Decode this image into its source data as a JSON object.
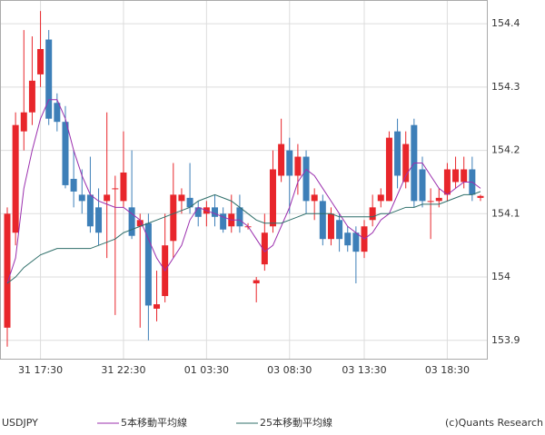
{
  "chart_data": {
    "type": "candlestick",
    "symbol": "USDJPY",
    "source": "(c)Quants Research",
    "up_color": "#e8262b",
    "down_color": "#3d7fb8",
    "categories": [
      null,
      null,
      null,
      null,
      "31 17:30",
      null,
      null,
      null,
      null,
      null,
      null,
      null,
      null,
      null,
      "31 22:30",
      null,
      null,
      null,
      null,
      null,
      null,
      null,
      null,
      null,
      "01 03:30",
      null,
      null,
      null,
      null,
      null,
      null,
      null,
      null,
      null,
      "03 08:30",
      null,
      null,
      null,
      null,
      null,
      null,
      null,
      null,
      "03 13:30",
      null,
      null,
      null,
      null,
      null,
      null,
      null,
      null,
      null,
      "03 18:30",
      null,
      null,
      null,
      null
    ],
    "open": [
      153.92,
      154.07,
      154.23,
      154.26,
      154.32,
      154.375,
      154.275,
      154.245,
      154.155,
      154.13,
      154.13,
      154.11,
      154.12,
      154.14,
      154.12,
      154.11,
      154.08,
      154.085,
      153.95,
      153.97,
      154.057,
      154.12,
      154.125,
      154.11,
      154.1,
      154.11,
      154.1,
      154.08,
      154.11,
      154.08,
      153.99,
      154.02,
      154.08,
      154.16,
      154.2,
      154.16,
      154.19,
      154.12,
      154.12,
      154.06,
      154.09,
      154.07,
      154.07,
      154.04,
      154.09,
      154.12,
      154.12,
      154.23,
      154.15,
      154.24,
      154.17,
      154.12,
      154.12,
      154.13,
      154.15,
      154.15,
      154.17,
      154.125
    ],
    "high": [
      154.11,
      154.26,
      154.39,
      154.38,
      154.42,
      154.39,
      154.29,
      154.27,
      154.2,
      154.17,
      154.19,
      154.14,
      154.26,
      154.16,
      154.23,
      154.2,
      154.1,
      154.1,
      154.01,
      154.1,
      154.18,
      154.14,
      154.18,
      154.12,
      154.12,
      154.13,
      154.11,
      154.13,
      154.13,
      154.085,
      154.0,
      154.1,
      154.2,
      154.25,
      154.22,
      154.21,
      154.2,
      154.14,
      154.13,
      154.11,
      154.1,
      154.08,
      154.08,
      154.09,
      154.13,
      154.14,
      154.23,
      154.25,
      154.23,
      154.25,
      154.19,
      154.14,
      154.14,
      154.18,
      154.19,
      154.19,
      154.19,
      154.13
    ],
    "low": [
      153.89,
      154.05,
      154.2,
      154.24,
      154.3,
      154.24,
      154.23,
      154.14,
      154.11,
      154.1,
      154.07,
      154.05,
      154.03,
      153.94,
      154.11,
      154.06,
      153.92,
      153.9,
      153.93,
      153.96,
      154.03,
      154.1,
      154.1,
      154.08,
      154.08,
      154.08,
      154.07,
      154.07,
      154.07,
      154.075,
      153.96,
      154.01,
      154.07,
      154.15,
      154.1,
      154.13,
      154.1,
      154.09,
      154.05,
      154.05,
      154.04,
      154.04,
      153.99,
      154.03,
      154.08,
      154.11,
      154.12,
      154.14,
      154.14,
      154.11,
      154.11,
      154.06,
      154.11,
      154.12,
      154.14,
      154.14,
      154.12,
      154.12
    ],
    "close": [
      154.1,
      154.24,
      154.26,
      154.31,
      154.36,
      154.25,
      154.245,
      154.145,
      154.135,
      154.12,
      154.08,
      154.07,
      154.13,
      154.14,
      154.165,
      154.065,
      154.09,
      153.955,
      153.957,
      154.05,
      154.13,
      154.13,
      154.11,
      154.095,
      154.11,
      154.095,
      154.075,
      154.1,
      154.08,
      154.08,
      153.995,
      154.07,
      154.17,
      154.21,
      154.16,
      154.19,
      154.12,
      154.13,
      154.06,
      154.1,
      154.06,
      154.05,
      154.04,
      154.08,
      154.11,
      154.13,
      154.22,
      154.16,
      154.21,
      154.12,
      154.12,
      154.12,
      154.125,
      154.17,
      154.17,
      154.17,
      154.13,
      154.128
    ],
    "series": [
      {
        "name": "5本移動平均線",
        "color": "#9b2fae",
        "values": [
          153.99,
          154.03,
          154.14,
          154.2,
          154.25,
          154.28,
          154.28,
          154.25,
          154.2,
          154.16,
          154.13,
          154.12,
          154.115,
          154.11,
          154.11,
          154.1,
          154.09,
          154.06,
          154.03,
          154.01,
          154.03,
          154.05,
          154.09,
          154.11,
          154.105,
          154.1,
          154.095,
          154.09,
          154.09,
          154.08,
          154.06,
          154.04,
          154.05,
          154.08,
          154.11,
          154.15,
          154.17,
          154.16,
          154.14,
          154.12,
          154.1,
          154.08,
          154.07,
          154.06,
          154.07,
          154.09,
          154.1,
          154.13,
          154.16,
          154.18,
          154.18,
          154.16,
          154.14,
          154.13,
          154.14,
          154.15,
          154.15,
          154.14
        ]
      },
      {
        "name": "25本移動平均線",
        "color": "#2f6f6a",
        "values": [
          153.99,
          154.0,
          154.015,
          154.025,
          154.035,
          154.04,
          154.045,
          154.045,
          154.045,
          154.045,
          154.045,
          154.05,
          154.055,
          154.06,
          154.07,
          154.075,
          154.08,
          154.085,
          154.09,
          154.095,
          154.1,
          154.105,
          154.11,
          154.12,
          154.125,
          154.13,
          154.125,
          154.12,
          154.11,
          154.1,
          154.09,
          154.085,
          154.085,
          154.085,
          154.09,
          154.095,
          154.1,
          154.1,
          154.1,
          154.1,
          154.095,
          154.095,
          154.095,
          154.095,
          154.095,
          154.1,
          154.1,
          154.105,
          154.11,
          154.11,
          154.115,
          154.115,
          154.115,
          154.12,
          154.125,
          154.13,
          154.13,
          154.135
        ]
      }
    ],
    "ylim": [
      153.871,
      154.436
    ],
    "yticks": [
      153.9,
      154.0,
      154.1,
      154.2,
      154.3,
      154.4
    ],
    "grid": true
  }
}
